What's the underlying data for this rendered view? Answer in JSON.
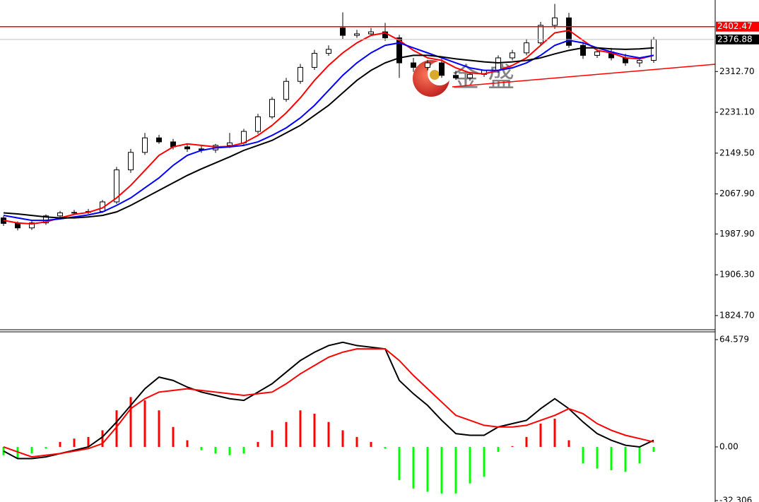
{
  "chart_data": [
    {
      "type": "candlestick",
      "ylim": [
        1796.4,
        2455.7
      ],
      "yticks": [
        {
          "value": 2312.7,
          "label": "2312.70"
        },
        {
          "value": 2231.1,
          "label": "2231.10"
        },
        {
          "value": 2149.5,
          "label": "2149.50"
        },
        {
          "value": 2067.9,
          "label": "2067.90"
        },
        {
          "value": 1987.9,
          "label": "1987.90"
        },
        {
          "value": 1906.3,
          "label": "1906.30"
        },
        {
          "value": 1824.7,
          "label": "1824.70"
        }
      ],
      "open": [
        2020,
        2009,
        2000,
        2010,
        2024,
        2030,
        2031,
        2033,
        2052,
        2116,
        2151,
        2180,
        2172,
        2162,
        2158,
        2156,
        2165,
        2170,
        2193,
        2222,
        2257,
        2293,
        2321,
        2349,
        2400,
        2385,
        2388,
        2392,
        2380,
        2330,
        2321,
        2330,
        2305,
        2300,
        2307,
        2315,
        2340,
        2350,
        2370,
        2405,
        2420,
        2365,
        2345,
        2352,
        2340,
        2330,
        2335
      ],
      "high": [
        2024,
        2013,
        2014,
        2027,
        2034,
        2036,
        2038,
        2056,
        2122,
        2158,
        2190,
        2186,
        2178,
        2168,
        2164,
        2168,
        2190,
        2198,
        2228,
        2262,
        2300,
        2328,
        2356,
        2365,
        2431,
        2396,
        2400,
        2410,
        2386,
        2340,
        2336,
        2338,
        2314,
        2312,
        2316,
        2345,
        2356,
        2378,
        2412,
        2448,
        2430,
        2372,
        2358,
        2360,
        2348,
        2340,
        2382
      ],
      "low": [
        2004,
        1995,
        1996,
        2006,
        2020,
        2026,
        2028,
        2030,
        2048,
        2110,
        2146,
        2168,
        2157,
        2152,
        2150,
        2150,
        2160,
        2165,
        2188,
        2218,
        2252,
        2288,
        2316,
        2344,
        2378,
        2380,
        2384,
        2374,
        2300,
        2312,
        2315,
        2300,
        2296,
        2294,
        2302,
        2310,
        2335,
        2345,
        2364,
        2398,
        2360,
        2338,
        2340,
        2335,
        2324,
        2322,
        2330
      ],
      "close": [
        2009,
        2000,
        2010,
        2024,
        2030,
        2031,
        2033,
        2052,
        2116,
        2151,
        2180,
        2172,
        2162,
        2158,
        2156,
        2165,
        2170,
        2193,
        2222,
        2257,
        2293,
        2321,
        2349,
        2357,
        2385,
        2388,
        2392,
        2380,
        2330,
        2321,
        2330,
        2305,
        2300,
        2307,
        2315,
        2340,
        2350,
        2370,
        2405,
        2420,
        2365,
        2345,
        2352,
        2340,
        2330,
        2335,
        2376.88
      ],
      "series": [
        {
          "color": "#ff0000",
          "values": [
            2015,
            2010,
            2008,
            2012,
            2020,
            2027,
            2031,
            2040,
            2060,
            2085,
            2115,
            2145,
            2162,
            2168,
            2165,
            2162,
            2163,
            2170,
            2185,
            2205,
            2230,
            2260,
            2295,
            2325,
            2350,
            2370,
            2385,
            2390,
            2375,
            2355,
            2340,
            2335,
            2320,
            2310,
            2308,
            2315,
            2325,
            2340,
            2365,
            2390,
            2395,
            2375,
            2355,
            2350,
            2340,
            2338,
            2345
          ]
        },
        {
          "color": "#0000ff",
          "values": [
            2025,
            2020,
            2015,
            2015,
            2018,
            2022,
            2026,
            2032,
            2045,
            2060,
            2080,
            2100,
            2125,
            2145,
            2155,
            2160,
            2162,
            2165,
            2172,
            2185,
            2200,
            2220,
            2245,
            2275,
            2305,
            2330,
            2350,
            2365,
            2370,
            2360,
            2350,
            2340,
            2330,
            2320,
            2315,
            2315,
            2320,
            2330,
            2345,
            2365,
            2375,
            2370,
            2360,
            2352,
            2345,
            2340,
            2345
          ]
        },
        {
          "color": "#000000",
          "values": [
            2030,
            2028,
            2025,
            2022,
            2020,
            2020,
            2022,
            2025,
            2032,
            2045,
            2060,
            2075,
            2090,
            2105,
            2118,
            2130,
            2142,
            2155,
            2165,
            2175,
            2190,
            2205,
            2225,
            2245,
            2270,
            2295,
            2315,
            2330,
            2340,
            2345,
            2345,
            2342,
            2338,
            2335,
            2332,
            2330,
            2332,
            2335,
            2340,
            2348,
            2355,
            2360,
            2360,
            2358,
            2357,
            2358,
            2360
          ]
        }
      ],
      "price_lines": [
        {
          "value": 2402.47,
          "color": "#ff0000"
        },
        {
          "value": 2376.88,
          "color": "#000000"
        }
      ],
      "watermark": "金 盛"
    },
    {
      "type": "macd",
      "ylim": [
        -32.306,
        64.579
      ],
      "yticks": [
        64.579,
        {
          "value": 0,
          "label": "0.00"
        },
        -32.306
      ],
      "histogram": [
        -5,
        -7,
        -4,
        -1,
        3,
        5,
        6,
        10,
        22,
        30,
        28,
        22,
        12,
        4,
        -2,
        -4,
        -5,
        -4,
        3,
        10,
        15,
        22,
        20,
        15,
        10,
        6,
        3,
        -1,
        -20,
        -25,
        -27,
        -28,
        -28,
        -22,
        -18,
        -3,
        0.5,
        6,
        14,
        17,
        4,
        -10,
        -13,
        -14,
        -15,
        -10,
        -3
      ],
      "positive_color": "#ff0000",
      "negative_color": "#00ff00",
      "series": [
        {
          "color": "#000000",
          "values": [
            -2.5,
            -7,
            -7,
            -6,
            -4,
            -2,
            0,
            6,
            15,
            25,
            35,
            42,
            40,
            36,
            33,
            31,
            29,
            28,
            33,
            38,
            45,
            52,
            57,
            61,
            63,
            61,
            60,
            59,
            40,
            32,
            25,
            16,
            8,
            7,
            7,
            12,
            14,
            16,
            23,
            29,
            23,
            15,
            8,
            4,
            1,
            0,
            4
          ]
        },
        {
          "color": "#ff0000",
          "values": [
            0,
            -3,
            -6,
            -5,
            -4,
            -2.5,
            -1,
            2,
            12,
            23,
            29,
            33,
            34,
            35,
            34,
            33,
            32,
            31,
            32,
            33,
            38,
            44,
            49,
            54,
            57,
            59,
            59,
            59,
            52,
            43,
            35,
            27,
            19,
            16,
            13,
            12,
            12,
            13,
            16,
            19,
            23,
            20,
            14,
            10,
            7,
            5,
            3
          ]
        }
      ]
    }
  ]
}
